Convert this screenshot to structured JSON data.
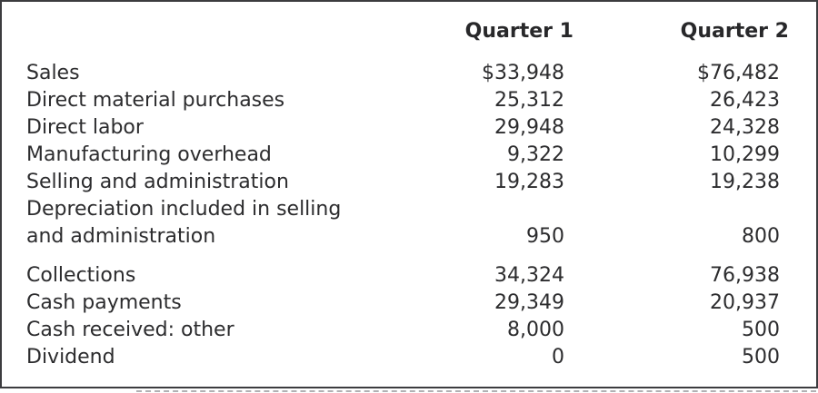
{
  "colors": {
    "text": "#2c2c2e",
    "border": "#3c3c3f",
    "background": "#ffffff"
  },
  "table": {
    "header": {
      "label": "",
      "q1": "Quarter 1",
      "q2": "Quarter 2"
    },
    "sections": [
      {
        "rows": [
          {
            "label": "Sales",
            "q1": "$33,948",
            "q2": "$76,482"
          },
          {
            "label": "Direct material purchases",
            "q1": "25,312",
            "q2": "26,423"
          },
          {
            "label": "Direct labor",
            "q1": "29,948",
            "q2": "24,328"
          },
          {
            "label": "Manufacturing overhead",
            "q1": "9,322",
            "q2": "10,299"
          },
          {
            "label": "Selling and administration",
            "q1": "19,283",
            "q2": "19,238"
          },
          {
            "label": "Depreciation included in selling",
            "q1": "",
            "q2": ""
          },
          {
            "label": "and administration",
            "q1": "950",
            "q2": "800"
          }
        ]
      },
      {
        "rows": [
          {
            "label": "Collections",
            "q1": "34,324",
            "q2": "76,938"
          },
          {
            "label": "Cash payments",
            "q1": "29,349",
            "q2": "20,937"
          },
          {
            "label": "Cash received: other",
            "q1": "8,000",
            "q2": "500"
          },
          {
            "label": "Dividend",
            "q1": "0",
            "q2": "500"
          }
        ]
      }
    ]
  },
  "chart_data": {
    "type": "table",
    "title": "",
    "columns": [
      "",
      "Quarter 1",
      "Quarter 2"
    ],
    "rows": [
      {
        "label": "Sales",
        "quarter_1": 33948,
        "quarter_2": 76482,
        "display_q1": "$33,948",
        "display_q2": "$76,482"
      },
      {
        "label": "Direct material purchases",
        "quarter_1": 25312,
        "quarter_2": 26423,
        "display_q1": "25,312",
        "display_q2": "26,423"
      },
      {
        "label": "Direct labor",
        "quarter_1": 29948,
        "quarter_2": 24328,
        "display_q1": "29,948",
        "display_q2": "24,328"
      },
      {
        "label": "Manufacturing overhead",
        "quarter_1": 9322,
        "quarter_2": 10299,
        "display_q1": "9,322",
        "display_q2": "10,299"
      },
      {
        "label": "Selling and administration",
        "quarter_1": 19283,
        "quarter_2": 19238,
        "display_q1": "19,283",
        "display_q2": "19,238"
      },
      {
        "label": "Depreciation included in selling and administration",
        "quarter_1": 950,
        "quarter_2": 800,
        "display_q1": "950",
        "display_q2": "800"
      },
      {
        "label": "Collections",
        "quarter_1": 34324,
        "quarter_2": 76938,
        "display_q1": "34,324",
        "display_q2": "76,938"
      },
      {
        "label": "Cash payments",
        "quarter_1": 29349,
        "quarter_2": 20937,
        "display_q1": "29,349",
        "display_q2": "20,937"
      },
      {
        "label": "Cash received: other",
        "quarter_1": 8000,
        "quarter_2": 500,
        "display_q1": "8,000",
        "display_q2": "500"
      },
      {
        "label": "Dividend",
        "quarter_1": 0,
        "quarter_2": 500,
        "display_q1": "0",
        "display_q2": "500"
      }
    ],
    "layout": {
      "value_alignment": "right",
      "header_style": "bold",
      "grid": "off",
      "outer_border": "on"
    }
  }
}
